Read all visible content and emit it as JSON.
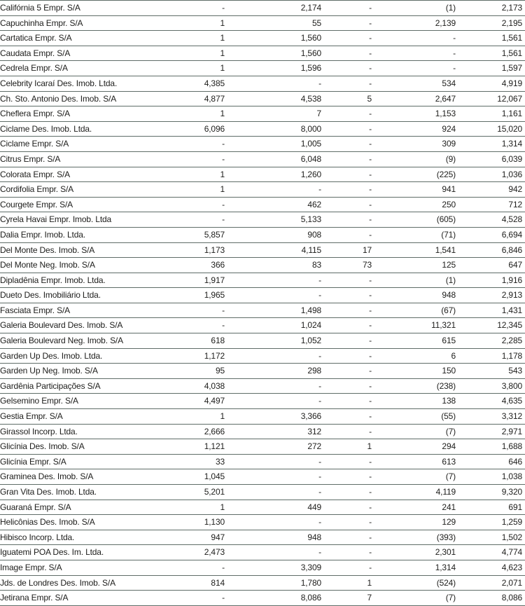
{
  "colors": {
    "line": "#5f6d68",
    "text": "#1d1d1b",
    "background": "#ffffff"
  },
  "table": {
    "rows": [
      {
        "name": "Califórnia 5 Empr. S/A",
        "values": [
          "-",
          "2,174",
          "-",
          "(1)",
          "2,173"
        ]
      },
      {
        "name": "Capuchinha Empr. S/A",
        "values": [
          "1",
          "55",
          "-",
          "2,139",
          "2,195"
        ]
      },
      {
        "name": "Cartatica Empr. S/A",
        "values": [
          "1",
          "1,560",
          "-",
          "-",
          "1,561"
        ]
      },
      {
        "name": "Caudata Empr. S/A",
        "values": [
          "1",
          "1,560",
          "-",
          "-",
          "1,561"
        ]
      },
      {
        "name": "Cedrela Empr. S/A",
        "values": [
          "1",
          "1,596",
          "-",
          "-",
          "1,597"
        ]
      },
      {
        "name": "Celebrity Icaraí Des. Imob. Ltda.",
        "values": [
          "4,385",
          "-",
          "-",
          "534",
          "4,919"
        ]
      },
      {
        "name": "Ch. Sto. Antonio Des. Imob. S/A",
        "values": [
          "4,877",
          "4,538",
          "5",
          "2,647",
          "12,067"
        ]
      },
      {
        "name": "Cheflera Empr. S/A",
        "values": [
          "1",
          "7",
          "-",
          "1,153",
          "1,161"
        ]
      },
      {
        "name": "Ciclame Des. Imob. Ltda.",
        "values": [
          "6,096",
          "8,000",
          "-",
          "924",
          "15,020"
        ]
      },
      {
        "name": "Ciclame Empr. S/A",
        "values": [
          "-",
          "1,005",
          "-",
          "309",
          "1,314"
        ]
      },
      {
        "name": "Citrus Empr. S/A",
        "values": [
          "-",
          "6,048",
          "-",
          "(9)",
          "6,039"
        ]
      },
      {
        "name": "Colorata Empr. S/A",
        "values": [
          "1",
          "1,260",
          "-",
          "(225)",
          "1,036"
        ]
      },
      {
        "name": "Cordifolia Empr. S/A",
        "values": [
          "1",
          "-",
          "-",
          "941",
          "942"
        ]
      },
      {
        "name": "Courgete Empr. S/A",
        "values": [
          "-",
          "462",
          "-",
          "250",
          "712"
        ]
      },
      {
        "name": "Cyrela Havai Empr. Imob. Ltda",
        "values": [
          "-",
          "5,133",
          "-",
          "(605)",
          "4,528"
        ]
      },
      {
        "name": "Dalia Empr. Imob. Ltda.",
        "values": [
          "5,857",
          "908",
          "-",
          "(71)",
          "6,694"
        ]
      },
      {
        "name": "Del Monte Des. Imob. S/A",
        "values": [
          "1,173",
          "4,115",
          "17",
          "1,541",
          "6,846"
        ]
      },
      {
        "name": "Del Monte Neg. Imob. S/A",
        "values": [
          "366",
          "83",
          "73",
          "125",
          "647"
        ]
      },
      {
        "name": "Dipladênia Empr. Imob. Ltda.",
        "values": [
          "1,917",
          "-",
          "-",
          "(1)",
          "1,916"
        ]
      },
      {
        "name": "Dueto Des. Imobiliário Ltda.",
        "values": [
          "1,965",
          "-",
          "-",
          "948",
          "2,913"
        ]
      },
      {
        "name": "Fasciata Empr. S/A",
        "values": [
          "-",
          "1,498",
          "-",
          "(67)",
          "1,431"
        ]
      },
      {
        "name": "Galeria Boulevard Des. Imob. S/A",
        "values": [
          "-",
          "1,024",
          "-",
          "11,321",
          "12,345"
        ]
      },
      {
        "name": "Galeria Boulevard Neg. Imob. S/A",
        "values": [
          "618",
          "1,052",
          "-",
          "615",
          "2,285"
        ]
      },
      {
        "name": "Garden Up Des. Imob. Ltda.",
        "values": [
          "1,172",
          "-",
          "-",
          "6",
          "1,178"
        ]
      },
      {
        "name": "Garden Up Neg. Imob. S/A",
        "values": [
          "95",
          "298",
          "-",
          "150",
          "543"
        ]
      },
      {
        "name": "Gardênia Participações S/A",
        "values": [
          "4,038",
          "-",
          "-",
          "(238)",
          "3,800"
        ]
      },
      {
        "name": "Gelsemino Empr. S/A",
        "values": [
          "4,497",
          "-",
          "-",
          "138",
          "4,635"
        ]
      },
      {
        "name": "Gestia Empr. S/A",
        "values": [
          "1",
          "3,366",
          "-",
          "(55)",
          "3,312"
        ]
      },
      {
        "name": "Girassol Incorp. Ltda.",
        "values": [
          "2,666",
          "312",
          "-",
          "(7)",
          "2,971"
        ]
      },
      {
        "name": "Glicínia Des. Imob. S/A",
        "values": [
          "1,121",
          "272",
          "1",
          "294",
          "1,688"
        ]
      },
      {
        "name": "Glicínia Empr. S/A",
        "values": [
          "33",
          "-",
          "-",
          "613",
          "646"
        ]
      },
      {
        "name": "Graminea Des. Imob. S/A",
        "values": [
          "1,045",
          "-",
          "-",
          "(7)",
          "1,038"
        ]
      },
      {
        "name": "Gran Vita Des. Imob. Ltda.",
        "values": [
          "5,201",
          "-",
          "-",
          "4,119",
          "9,320"
        ]
      },
      {
        "name": "Guaraná Empr. S/A",
        "values": [
          "1",
          "449",
          "-",
          "241",
          "691"
        ]
      },
      {
        "name": "Helicônias Des. Imob. S/A",
        "values": [
          "1,130",
          "-",
          "-",
          "129",
          "1,259"
        ]
      },
      {
        "name": "Hibisco Incorp. Ltda.",
        "values": [
          "947",
          "948",
          "-",
          "(393)",
          "1,502"
        ]
      },
      {
        "name": "Iguatemi POA Des. Im. Ltda.",
        "values": [
          "2,473",
          "-",
          "-",
          "2,301",
          "4,774"
        ]
      },
      {
        "name": "Image Empr. S/A",
        "values": [
          "-",
          "3,309",
          "-",
          "1,314",
          "4,623"
        ]
      },
      {
        "name": "Jds. de Londres Des. Imob. S/A",
        "values": [
          "814",
          "1,780",
          "1",
          "(524)",
          "2,071"
        ]
      },
      {
        "name": "Jetirana Empr. S/A",
        "values": [
          "-",
          "8,086",
          "7",
          "(7)",
          "8,086"
        ]
      }
    ]
  }
}
